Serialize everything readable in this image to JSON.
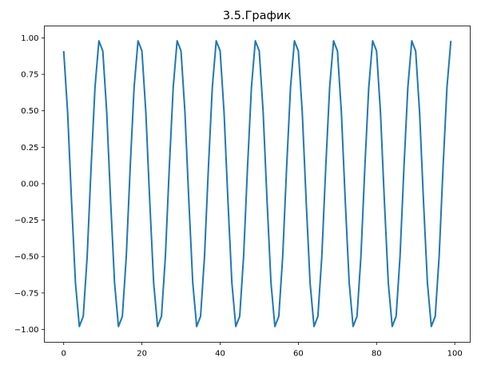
{
  "chart_data": {
    "type": "line",
    "title": "3.5.График",
    "xlabel": "",
    "ylabel": "",
    "xlim": [
      -4.95,
      103.95
    ],
    "ylim": [
      -1.088,
      1.082
    ],
    "grid": false,
    "xticks": [
      0,
      20,
      40,
      60,
      80,
      100
    ],
    "xtick_labels": [
      "0",
      "20",
      "40",
      "60",
      "80",
      "100"
    ],
    "yticks": [
      1.0,
      0.75,
      0.5,
      0.25,
      0.0,
      -0.25,
      -0.5,
      -0.75,
      -1.0
    ],
    "ytick_labels": [
      "1.00",
      "0.75",
      "0.50",
      "0.25",
      "0.00",
      "−0.25",
      "−0.50",
      "−0.75",
      "−1.00"
    ],
    "series": [
      {
        "color": "#1f77b4",
        "x": [
          0,
          1,
          2,
          3,
          4,
          5,
          6,
          7,
          8,
          9,
          10,
          11,
          12,
          13,
          14,
          15,
          16,
          17,
          18,
          19,
          20,
          21,
          22,
          23,
          24,
          25,
          26,
          27,
          28,
          29,
          30,
          31,
          32,
          33,
          34,
          35,
          36,
          37,
          38,
          39,
          40,
          41,
          42,
          43,
          44,
          45,
          46,
          47,
          48,
          49,
          50,
          51,
          52,
          53,
          54,
          55,
          56,
          57,
          58,
          59,
          60,
          61,
          62,
          63,
          64,
          65,
          66,
          67,
          68,
          69,
          70,
          71,
          72,
          73,
          74,
          75,
          76,
          77,
          78,
          79,
          80,
          81,
          82,
          83,
          84,
          85,
          86,
          87,
          88,
          89,
          90,
          91,
          92,
          93,
          94,
          95,
          96,
          97,
          98,
          99
        ],
        "y": [
          0.91,
          0.49,
          -0.12,
          -0.68,
          -0.98,
          -0.91,
          -0.5,
          0.11,
          0.66,
          0.98,
          0.91,
          0.49,
          -0.12,
          -0.68,
          -0.98,
          -0.91,
          -0.5,
          0.11,
          0.66,
          0.98,
          0.91,
          0.49,
          -0.12,
          -0.68,
          -0.98,
          -0.91,
          -0.5,
          0.11,
          0.66,
          0.98,
          0.91,
          0.49,
          -0.12,
          -0.68,
          -0.98,
          -0.91,
          -0.5,
          0.11,
          0.66,
          0.98,
          0.91,
          0.49,
          -0.12,
          -0.68,
          -0.98,
          -0.91,
          -0.5,
          0.11,
          0.66,
          0.98,
          0.91,
          0.49,
          -0.12,
          -0.68,
          -0.98,
          -0.91,
          -0.5,
          0.11,
          0.66,
          0.98,
          0.91,
          0.49,
          -0.12,
          -0.68,
          -0.98,
          -0.91,
          -0.5,
          0.11,
          0.66,
          0.98,
          0.91,
          0.49,
          -0.12,
          -0.68,
          -0.98,
          -0.91,
          -0.5,
          0.11,
          0.66,
          0.98,
          0.91,
          0.49,
          -0.12,
          -0.68,
          -0.98,
          -0.91,
          -0.5,
          0.11,
          0.66,
          0.98,
          0.91,
          0.49,
          -0.12,
          -0.68,
          -0.98,
          -0.91,
          -0.5,
          0.11,
          0.66,
          0.98
        ]
      }
    ]
  }
}
